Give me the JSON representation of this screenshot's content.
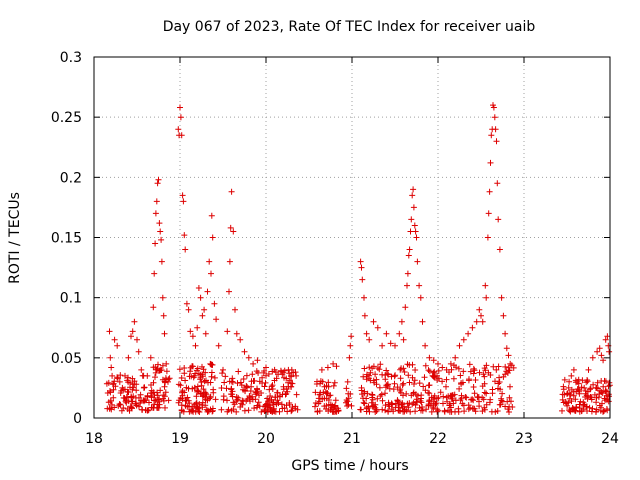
{
  "chart_data": {
    "type": "scatter",
    "title": "Day 067 of 2023, Rate Of TEC Index for receiver uaib",
    "xlabel": "GPS time / hours",
    "ylabel": "ROTI / TECUs",
    "xlim": [
      18,
      24
    ],
    "ylim": [
      0,
      0.3
    ],
    "x_ticks": [
      "18",
      "19",
      "20",
      "21",
      "22",
      "23",
      "24"
    ],
    "y_ticks": [
      "0",
      "0.05",
      "0.1",
      "0.15",
      "0.2",
      "0.25",
      "0.3"
    ],
    "grid": true,
    "marker": "+",
    "color": "#dd0000",
    "series": [
      {
        "name": "ROTI",
        "points": [
          [
            18.18,
            0.072
          ],
          [
            18.19,
            0.05
          ],
          [
            18.2,
            0.042
          ],
          [
            18.21,
            0.035
          ],
          [
            18.22,
            0.028
          ],
          [
            18.24,
            0.065
          ],
          [
            18.27,
            0.06
          ],
          [
            18.3,
            0.03
          ],
          [
            18.33,
            0.025
          ],
          [
            18.36,
            0.035
          ],
          [
            18.4,
            0.05
          ],
          [
            18.43,
            0.068
          ],
          [
            18.45,
            0.072
          ],
          [
            18.47,
            0.08
          ],
          [
            18.5,
            0.065
          ],
          [
            18.52,
            0.055
          ],
          [
            18.55,
            0.04
          ],
          [
            18.58,
            0.025
          ],
          [
            18.62,
            0.035
          ],
          [
            18.66,
            0.05
          ],
          [
            18.69,
            0.092
          ],
          [
            18.7,
            0.12
          ],
          [
            18.71,
            0.145
          ],
          [
            18.72,
            0.17
          ],
          [
            18.73,
            0.18
          ],
          [
            18.74,
            0.195
          ],
          [
            18.75,
            0.198
          ],
          [
            18.76,
            0.162
          ],
          [
            18.77,
            0.155
          ],
          [
            18.78,
            0.148
          ],
          [
            18.79,
            0.13
          ],
          [
            18.8,
            0.1
          ],
          [
            18.81,
            0.085
          ],
          [
            18.82,
            0.07
          ],
          [
            18.84,
            0.045
          ],
          [
            18.86,
            0.03
          ],
          [
            18.98,
            0.24
          ],
          [
            18.99,
            0.235
          ],
          [
            19.0,
            0.258
          ],
          [
            19.01,
            0.25
          ],
          [
            19.02,
            0.235
          ],
          [
            19.03,
            0.185
          ],
          [
            19.04,
            0.18
          ],
          [
            19.05,
            0.152
          ],
          [
            19.06,
            0.14
          ],
          [
            19.08,
            0.095
          ],
          [
            19.1,
            0.09
          ],
          [
            19.12,
            0.072
          ],
          [
            19.15,
            0.068
          ],
          [
            19.18,
            0.06
          ],
          [
            19.2,
            0.075
          ],
          [
            19.22,
            0.108
          ],
          [
            19.24,
            0.1
          ],
          [
            19.26,
            0.085
          ],
          [
            19.28,
            0.09
          ],
          [
            19.3,
            0.07
          ],
          [
            19.32,
            0.105
          ],
          [
            19.34,
            0.13
          ],
          [
            19.36,
            0.12
          ],
          [
            19.37,
            0.168
          ],
          [
            19.38,
            0.15
          ],
          [
            19.4,
            0.095
          ],
          [
            19.42,
            0.082
          ],
          [
            19.45,
            0.06
          ],
          [
            19.5,
            0.04
          ],
          [
            19.55,
            0.072
          ],
          [
            19.57,
            0.105
          ],
          [
            19.58,
            0.13
          ],
          [
            19.59,
            0.158
          ],
          [
            19.6,
            0.188
          ],
          [
            19.62,
            0.155
          ],
          [
            19.64,
            0.09
          ],
          [
            19.66,
            0.07
          ],
          [
            19.7,
            0.065
          ],
          [
            19.75,
            0.055
          ],
          [
            19.8,
            0.05
          ],
          [
            19.85,
            0.045
          ],
          [
            19.9,
            0.048
          ],
          [
            20.0,
            0.042
          ],
          [
            20.1,
            0.04
          ],
          [
            20.2,
            0.038
          ],
          [
            20.3,
            0.04
          ],
          [
            20.35,
            0.035
          ],
          [
            20.65,
            0.04
          ],
          [
            20.72,
            0.042
          ],
          [
            20.78,
            0.045
          ],
          [
            20.82,
            0.043
          ],
          [
            20.95,
            0.03
          ],
          [
            20.97,
            0.05
          ],
          [
            20.98,
            0.06
          ],
          [
            20.99,
            0.068
          ],
          [
            21.1,
            0.13
          ],
          [
            21.11,
            0.125
          ],
          [
            21.12,
            0.115
          ],
          [
            21.14,
            0.1
          ],
          [
            21.15,
            0.085
          ],
          [
            21.17,
            0.07
          ],
          [
            21.2,
            0.065
          ],
          [
            21.25,
            0.08
          ],
          [
            21.3,
            0.075
          ],
          [
            21.35,
            0.06
          ],
          [
            21.4,
            0.07
          ],
          [
            21.45,
            0.062
          ],
          [
            21.5,
            0.06
          ],
          [
            21.55,
            0.07
          ],
          [
            21.58,
            0.08
          ],
          [
            21.6,
            0.065
          ],
          [
            21.62,
            0.092
          ],
          [
            21.64,
            0.11
          ],
          [
            21.65,
            0.12
          ],
          [
            21.66,
            0.135
          ],
          [
            21.67,
            0.14
          ],
          [
            21.68,
            0.155
          ],
          [
            21.69,
            0.165
          ],
          [
            21.7,
            0.185
          ],
          [
            21.71,
            0.19
          ],
          [
            21.72,
            0.175
          ],
          [
            21.73,
            0.16
          ],
          [
            21.74,
            0.155
          ],
          [
            21.75,
            0.15
          ],
          [
            21.76,
            0.13
          ],
          [
            21.78,
            0.11
          ],
          [
            21.8,
            0.1
          ],
          [
            21.82,
            0.08
          ],
          [
            21.85,
            0.06
          ],
          [
            21.9,
            0.05
          ],
          [
            21.95,
            0.048
          ],
          [
            22.0,
            0.045
          ],
          [
            22.05,
            0.042
          ],
          [
            22.1,
            0.04
          ],
          [
            22.15,
            0.045
          ],
          [
            22.2,
            0.05
          ],
          [
            22.25,
            0.06
          ],
          [
            22.3,
            0.065
          ],
          [
            22.35,
            0.07
          ],
          [
            22.4,
            0.075
          ],
          [
            22.45,
            0.08
          ],
          [
            22.48,
            0.09
          ],
          [
            22.5,
            0.085
          ],
          [
            22.52,
            0.08
          ],
          [
            22.55,
            0.11
          ],
          [
            22.56,
            0.1
          ],
          [
            22.58,
            0.15
          ],
          [
            22.59,
            0.17
          ],
          [
            22.6,
            0.188
          ],
          [
            22.61,
            0.212
          ],
          [
            22.62,
            0.235
          ],
          [
            22.63,
            0.24
          ],
          [
            22.64,
            0.26
          ],
          [
            22.65,
            0.258
          ],
          [
            22.66,
            0.25
          ],
          [
            22.67,
            0.24
          ],
          [
            22.68,
            0.23
          ],
          [
            22.69,
            0.195
          ],
          [
            22.7,
            0.165
          ],
          [
            22.72,
            0.14
          ],
          [
            22.74,
            0.1
          ],
          [
            22.76,
            0.085
          ],
          [
            22.78,
            0.07
          ],
          [
            22.8,
            0.058
          ],
          [
            22.82,
            0.052
          ],
          [
            22.84,
            0.045
          ],
          [
            23.45,
            0.015
          ],
          [
            23.5,
            0.02
          ],
          [
            23.52,
            0.025
          ],
          [
            23.55,
            0.035
          ],
          [
            23.58,
            0.04
          ],
          [
            23.62,
            0.03
          ],
          [
            23.7,
            0.025
          ],
          [
            23.75,
            0.04
          ],
          [
            23.8,
            0.05
          ],
          [
            23.85,
            0.055
          ],
          [
            23.88,
            0.058
          ],
          [
            23.9,
            0.052
          ],
          [
            23.92,
            0.048
          ],
          [
            23.95,
            0.065
          ],
          [
            23.97,
            0.068
          ],
          [
            23.98,
            0.06
          ],
          [
            23.99,
            0.055
          ]
        ]
      }
    ],
    "bands": [
      {
        "x_start": 18.15,
        "x_end": 18.64,
        "y_min": 0.006,
        "y_max": 0.036,
        "n": 90
      },
      {
        "x_start": 18.66,
        "x_end": 18.88,
        "y_min": 0.008,
        "y_max": 0.045,
        "n": 55
      },
      {
        "x_start": 18.98,
        "x_end": 19.42,
        "y_min": 0.005,
        "y_max": 0.045,
        "n": 120
      },
      {
        "x_start": 19.48,
        "x_end": 20.38,
        "y_min": 0.005,
        "y_max": 0.04,
        "n": 180
      },
      {
        "x_start": 20.55,
        "x_end": 20.86,
        "y_min": 0.005,
        "y_max": 0.032,
        "n": 55
      },
      {
        "x_start": 20.93,
        "x_end": 21.0,
        "y_min": 0.01,
        "y_max": 0.025,
        "n": 10
      },
      {
        "x_start": 21.08,
        "x_end": 22.88,
        "y_min": 0.005,
        "y_max": 0.045,
        "n": 330
      },
      {
        "x_start": 23.44,
        "x_end": 24.0,
        "y_min": 0.005,
        "y_max": 0.032,
        "n": 120
      }
    ]
  }
}
